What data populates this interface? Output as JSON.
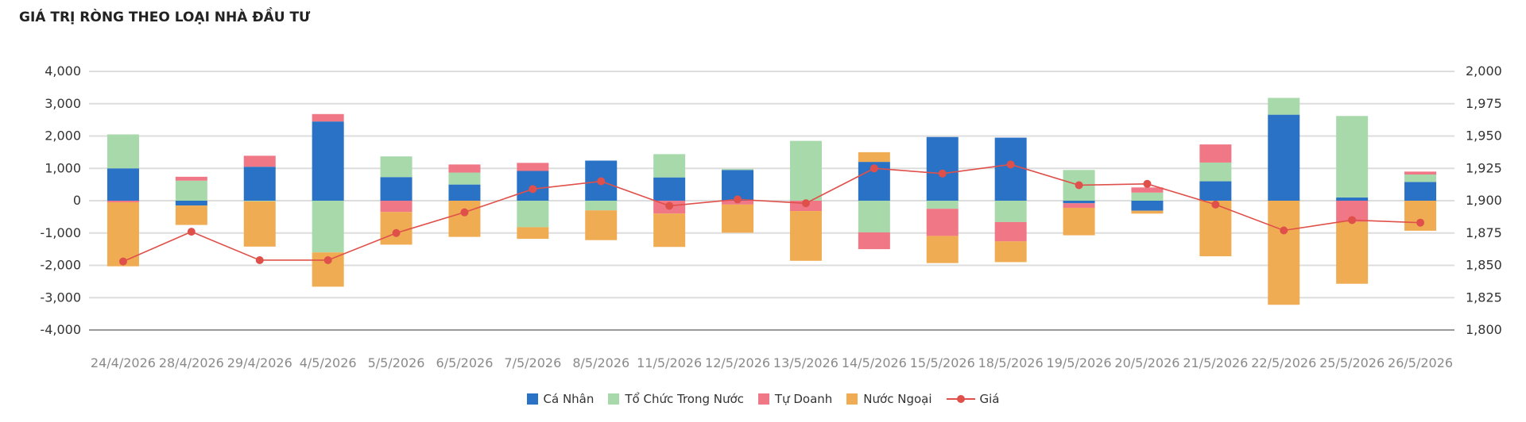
{
  "title": "GIÁ TRỊ RÒNG THEO LOẠI NHÀ ĐẦU TƯ",
  "chart_data": {
    "type": "bar",
    "stacked": true,
    "categories": [
      "24/4/2026",
      "28/4/2026",
      "29/4/2026",
      "4/5/2026",
      "5/5/2026",
      "6/5/2026",
      "7/5/2026",
      "8/5/2026",
      "11/5/2026",
      "12/5/2026",
      "13/5/2026",
      "14/5/2026",
      "15/5/2026",
      "18/5/2026",
      "19/5/2026",
      "20/5/2026",
      "21/5/2026",
      "22/5/2026",
      "25/5/2026",
      "26/5/2026"
    ],
    "series": [
      {
        "name": "Cá Nhân",
        "color": "#2a72c6",
        "values": [
          1000,
          -150,
          1050,
          2450,
          730,
          500,
          920,
          1240,
          720,
          950,
          0,
          1200,
          1970,
          1950,
          -80,
          -310,
          600,
          2660,
          100,
          580
        ]
      },
      {
        "name": "Tổ Chức Trong Nước",
        "color": "#a8d9ab",
        "values": [
          1050,
          620,
          -20,
          -1600,
          640,
          370,
          -820,
          -300,
          720,
          30,
          1850,
          -980,
          -250,
          -660,
          950,
          250,
          580,
          520,
          2520,
          230
        ]
      },
      {
        "name": "Tự Doanh",
        "color": "#f07785",
        "values": [
          -50,
          120,
          340,
          230,
          -350,
          250,
          250,
          0,
          -400,
          -120,
          -320,
          -520,
          -840,
          -600,
          -140,
          160,
          560,
          0,
          -650,
          90
        ]
      },
      {
        "name": "Nước Ngoại",
        "color": "#f0ac53",
        "values": [
          -1980,
          -600,
          -1400,
          -1060,
          -1010,
          -1120,
          -360,
          -920,
          -1030,
          -870,
          -1540,
          300,
          -840,
          -640,
          -850,
          -90,
          -1720,
          -3220,
          -1920,
          -930
        ]
      }
    ],
    "line": {
      "name": "Giá",
      "color": "#e0504a",
      "axis": "right",
      "values": [
        1853,
        1876,
        1854,
        1854,
        1875,
        1891,
        1909,
        1915,
        1896,
        1901,
        1898,
        1925,
        1921,
        1928,
        1912,
        1913,
        1897,
        1877,
        1885,
        1883
      ]
    },
    "y_left": {
      "min": -4000,
      "max": 4000,
      "step": 1000,
      "tick_labels": [
        "-4,000",
        "-3,000",
        "-2,000",
        "-1,000",
        "0",
        "1,000",
        "2,000",
        "3,000",
        "4,000"
      ]
    },
    "y_right": {
      "min": 1800,
      "max": 2000,
      "step": 25,
      "tick_labels": [
        "1,800",
        "1,825",
        "1,850",
        "1,875",
        "1,900",
        "1,925",
        "1,950",
        "1,975",
        "2,000"
      ]
    },
    "grid": true,
    "legend_position": "bottom-center"
  }
}
